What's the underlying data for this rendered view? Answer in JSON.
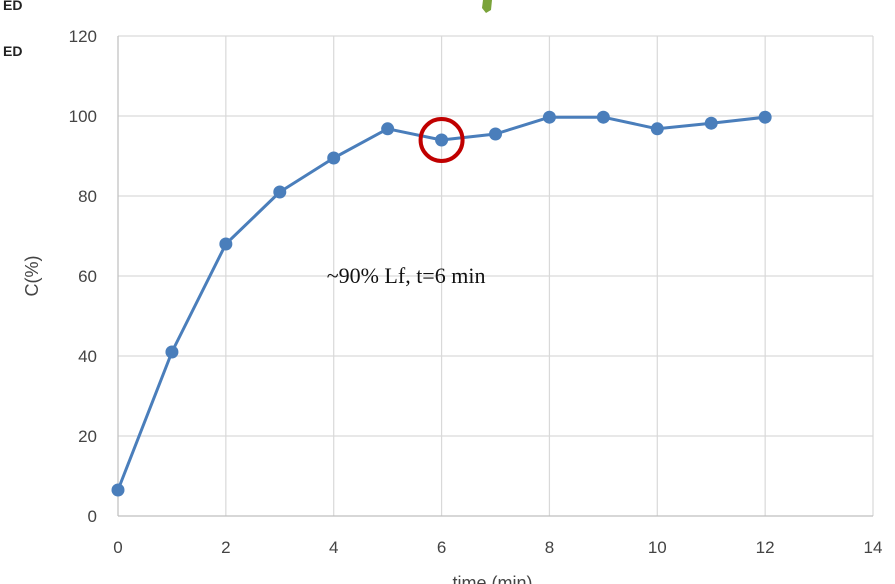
{
  "chart_data": {
    "type": "line",
    "xlabel": "time (min)",
    "ylabel": "C(%)",
    "xlim": [
      0,
      14
    ],
    "ylim": [
      0,
      120
    ],
    "x_ticks": [
      0,
      2,
      4,
      6,
      8,
      10,
      12,
      14
    ],
    "y_ticks": [
      0,
      20,
      40,
      60,
      80,
      100,
      120
    ],
    "grid": true,
    "series": [
      {
        "x": [
          0,
          1,
          2,
          3,
          4,
          5,
          6,
          7,
          8,
          9,
          10,
          11,
          12
        ],
        "y": [
          6.5,
          41,
          68,
          81,
          89.5,
          96.8,
          94,
          95.5,
          99.7,
          99.7,
          96.8,
          98.2,
          99.7
        ],
        "color": "#4a7ebb"
      }
    ],
    "highlight": {
      "x": 6,
      "y": 94,
      "color": "#c00000"
    },
    "annotation": {
      "text": "~90% Lf, t=6 min",
      "x": 4.0,
      "y": 60
    }
  },
  "cropped_text": [
    "ED",
    "ED"
  ],
  "colors": {
    "line": "#4a7ebb",
    "grid": "#d9d9d9",
    "highlight": "#c00000",
    "leaf": "#7aa33a"
  }
}
